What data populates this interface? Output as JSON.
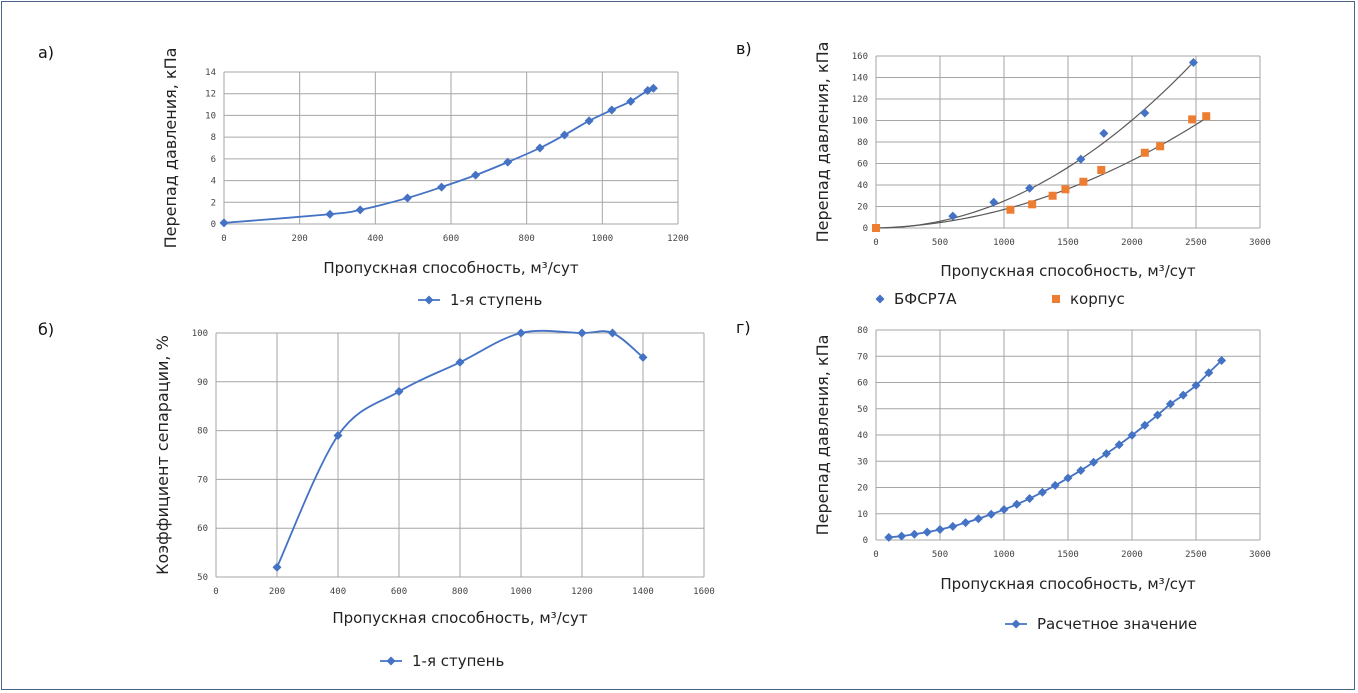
{
  "colors": {
    "series_blue": "#4472c4",
    "series_orange": "#ed7d31",
    "trend": "#595959",
    "grid": "#a6a6a6",
    "border": "#4a6587"
  },
  "chart_data": [
    {
      "id": "a",
      "panel_label": "а)",
      "type": "line",
      "xlabel": "Пропускная способность, м³/сут",
      "ylabel": "Перепад давления, кПа",
      "xlim": [
        0,
        1200
      ],
      "xticks": [
        0,
        200,
        400,
        600,
        800,
        1000,
        1200
      ],
      "ylim": [
        0,
        14
      ],
      "yticks": [
        0,
        2,
        4,
        6,
        8,
        10,
        12,
        14
      ],
      "grid": true,
      "legend_position": "bottom",
      "series": [
        {
          "name": "1-я ступень",
          "color": "#4472c4",
          "marker": "diamond",
          "line": true,
          "x": [
            0,
            280,
            360,
            485,
            575,
            665,
            750,
            835,
            900,
            965,
            1025,
            1075,
            1120,
            1135
          ],
          "y": [
            0.1,
            0.9,
            1.3,
            2.4,
            3.4,
            4.5,
            5.7,
            7.0,
            8.2,
            9.5,
            10.5,
            11.3,
            12.3,
            12.5
          ]
        }
      ]
    },
    {
      "id": "v",
      "panel_label": "в)",
      "type": "scatter",
      "xlabel": "Пропускная способность, м³/сут",
      "ylabel": "Перепад давления, кПа",
      "xlim": [
        0,
        3000
      ],
      "xticks": [
        0,
        500,
        1000,
        1500,
        2000,
        2500,
        3000
      ],
      "ylim": [
        0,
        160
      ],
      "yticks": [
        0,
        20,
        40,
        60,
        80,
        100,
        120,
        140,
        160
      ],
      "grid": true,
      "legend_position": "bottom",
      "series": [
        {
          "name": "БФСР7А",
          "color": "#4472c4",
          "marker": "diamond",
          "line": false,
          "x": [
            600,
            920,
            1200,
            1600,
            1780,
            2100,
            2480
          ],
          "y": [
            11,
            24,
            37,
            64,
            88,
            107,
            154
          ],
          "trend": {
            "a": 2.508e-05,
            "b": 0.0
          }
        },
        {
          "name": "корпус",
          "color": "#ed7d31",
          "marker": "square",
          "line": false,
          "x": [
            0,
            1050,
            1220,
            1380,
            1480,
            1620,
            1760,
            2100,
            2220,
            2470,
            2580
          ],
          "y": [
            0,
            17,
            22,
            30,
            36,
            43,
            54,
            70,
            76,
            101,
            104
          ],
          "trend": {
            "a": 1.42e-05,
            "b": 0.003
          }
        }
      ]
    },
    {
      "id": "b",
      "panel_label": "б)",
      "type": "line",
      "xlabel": "Пропускная способность, м³/сут",
      "ylabel": "Коэффициент сепарации, %",
      "xlim": [
        0,
        1600
      ],
      "xticks": [
        0,
        200,
        400,
        600,
        800,
        1000,
        1200,
        1400,
        1600
      ],
      "ylim": [
        50,
        100
      ],
      "yticks": [
        50,
        60,
        70,
        80,
        90,
        100
      ],
      "grid": true,
      "legend_position": "bottom",
      "series": [
        {
          "name": "1-я ступень",
          "color": "#4472c4",
          "marker": "diamond",
          "line": true,
          "x": [
            200,
            400,
            600,
            800,
            1000,
            1200,
            1300,
            1400
          ],
          "y": [
            52,
            79,
            88,
            94,
            100,
            100,
            100,
            95
          ]
        }
      ]
    },
    {
      "id": "g",
      "panel_label": "г)",
      "type": "line",
      "xlabel": "Пропускная способность, м³/сут",
      "ylabel": "Перепад давления, кПа",
      "xlim": [
        0,
        3000
      ],
      "xticks": [
        0,
        500,
        1000,
        1500,
        2000,
        2500,
        3000
      ],
      "ylim": [
        0,
        80
      ],
      "yticks": [
        0,
        10,
        20,
        30,
        40,
        50,
        60,
        70,
        80
      ],
      "grid": true,
      "legend_position": "bottom",
      "series": [
        {
          "name": "Расчетное значение",
          "color": "#4472c4",
          "marker": "diamond",
          "line": true,
          "x": [
            100,
            200,
            300,
            400,
            500,
            600,
            700,
            800,
            900,
            1000,
            1100,
            1200,
            1300,
            1400,
            1500,
            1600,
            1700,
            1800,
            1900,
            2000,
            2100,
            2200,
            2300,
            2400,
            2500,
            2600,
            2700
          ],
          "y": [
            1.0,
            1.5,
            2.2,
            3.0,
            4.0,
            5.2,
            6.6,
            8.1,
            9.8,
            11.6,
            13.6,
            15.8,
            18.2,
            20.8,
            23.6,
            26.5,
            29.6,
            32.9,
            36.3,
            39.9,
            43.7,
            47.6,
            51.8,
            55.2,
            58.9,
            63.7,
            68.4
          ]
        }
      ]
    }
  ]
}
